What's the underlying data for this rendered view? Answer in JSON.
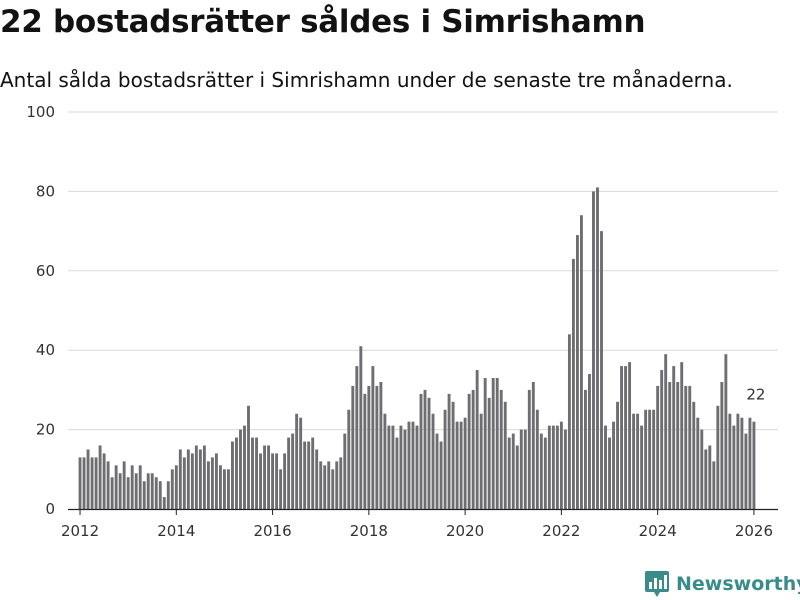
{
  "title": "22 bostadsrätter såldes i Simrishamn",
  "subtitle": "Antal sålda bostadsrätter i Simrishamn under de senaste tre månaderna.",
  "brand": {
    "name": "Newsworthy",
    "color": "#3a8c8a"
  },
  "colors": {
    "bar": "#6e6e72",
    "highlight": "#1f9b90",
    "grid": "#d9d9d9",
    "axis": "#222222"
  },
  "chart_data": {
    "type": "bar",
    "title": "22 bostadsrätter såldes i Simrishamn",
    "xlabel": "",
    "ylabel": "",
    "ylim": [
      0,
      100
    ],
    "yticks": [
      0,
      20,
      40,
      60,
      80,
      100
    ],
    "xlim": [
      2011.75,
      2026.5
    ],
    "xticks": [
      2012,
      2014,
      2016,
      2018,
      2020,
      2022,
      2024,
      2026
    ],
    "grid": true,
    "series": [
      {
        "name": "Antal sålda bostadsrätter",
        "start": "2012-01",
        "frequency": "monthly",
        "values": [
          13,
          13,
          15,
          13,
          13,
          16,
          14,
          12,
          8,
          11,
          9,
          12,
          8,
          11,
          9,
          11,
          7,
          9,
          9,
          8,
          7,
          3,
          7,
          10,
          11,
          15,
          13,
          15,
          14,
          16,
          15,
          16,
          12,
          13,
          14,
          11,
          10,
          10,
          17,
          18,
          20,
          21,
          26,
          18,
          18,
          14,
          16,
          16,
          14,
          14,
          10,
          14,
          18,
          19,
          24,
          23,
          17,
          17,
          18,
          15,
          12,
          11,
          12,
          10,
          12,
          13,
          19,
          25,
          31,
          36,
          41,
          29,
          31,
          36,
          31,
          32,
          24,
          21,
          21,
          18,
          21,
          20,
          22,
          22,
          21,
          29,
          30,
          28,
          24,
          19,
          17,
          25,
          29,
          27,
          22,
          22,
          23,
          29,
          30,
          35,
          24,
          33,
          28,
          33,
          33,
          30,
          27,
          18,
          19,
          16,
          20,
          20,
          30,
          32,
          25,
          19,
          18,
          21,
          21,
          21,
          22,
          20,
          44,
          63,
          69,
          74,
          30,
          34,
          80,
          81,
          70,
          21,
          18,
          22,
          27,
          36,
          36,
          37,
          24,
          24,
          21,
          25,
          25,
          25,
          31,
          35,
          39,
          32,
          36,
          32,
          37,
          31,
          31,
          27,
          23,
          20,
          15,
          16,
          12,
          26,
          32,
          39,
          24,
          21,
          24,
          23,
          19,
          23,
          22
        ]
      }
    ],
    "highlight": {
      "index": 169,
      "value": 22,
      "label": "22"
    }
  }
}
